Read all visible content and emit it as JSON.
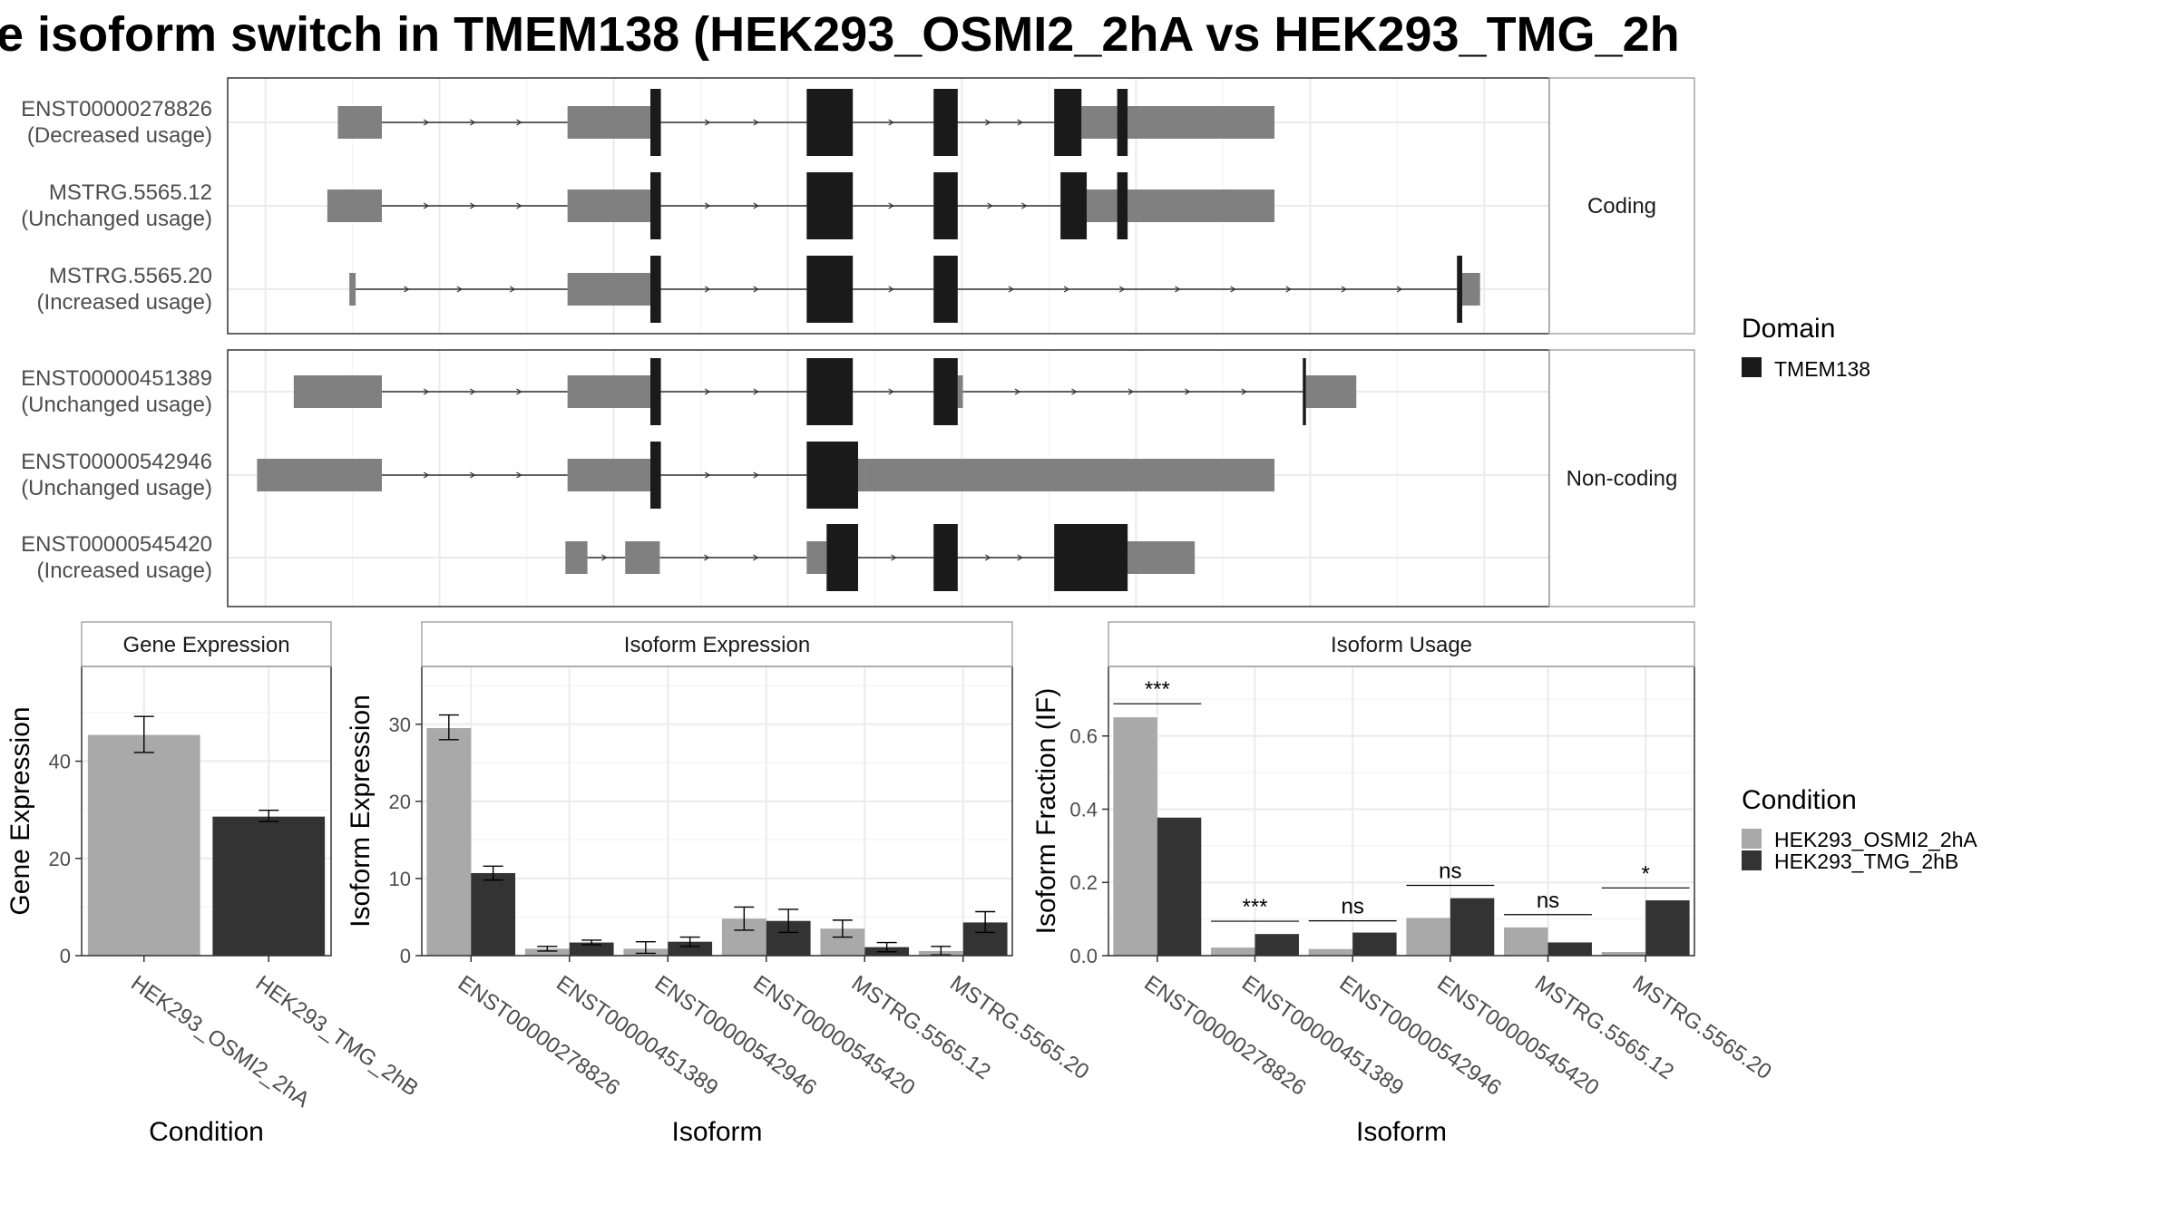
{
  "title": "e isoform switch in TMEM138 (HEK293_OSMI2_2hA vs HEK293_TMG_2h",
  "colors": {
    "domain": "#1a1a1a",
    "exon": "#808080",
    "line": "#333333",
    "panel_border": "#333333",
    "strip_border": "#a6a6a6",
    "grid_major": "#ebebeb",
    "grid_minor": "#f5f5f5",
    "cond_a": "#a9a9a9",
    "cond_b": "#333333"
  },
  "gene_structure": {
    "facets": [
      {
        "label": "Coding",
        "isoforms": [
          {
            "id": "ENST00000278826",
            "usage": "(Decreased usage)",
            "utr": [
              [
                0.5,
                4.7
              ],
              [
                22.4,
                30.3
              ],
              [
                71.4,
                74.8
              ],
              [
                75.8,
                89.8
              ]
            ],
            "cds": [
              [
                30.3,
                31.3
              ],
              [
                45.2,
                49.6
              ],
              [
                57.3,
                59.6
              ],
              [
                68.8,
                71.4
              ],
              [
                74.8,
                75.8
              ]
            ],
            "intron": [
              [
                4.7,
                22.4
              ],
              [
                31.3,
                45.2
              ],
              [
                49.6,
                57.3
              ],
              [
                59.6,
                68.8
              ]
            ]
          },
          {
            "id": "MSTRG.5565.12",
            "usage": "(Unchanged usage)",
            "utr": [
              [
                -0.5,
                4.7
              ],
              [
                22.4,
                30.3
              ],
              [
                71.9,
                74.8
              ],
              [
                75.8,
                89.8
              ]
            ],
            "cds": [
              [
                30.3,
                31.3
              ],
              [
                45.2,
                49.6
              ],
              [
                57.3,
                59.6
              ],
              [
                69.4,
                71.9
              ],
              [
                74.8,
                75.8
              ]
            ],
            "intron": [
              [
                4.7,
                22.4
              ],
              [
                31.3,
                45.2
              ],
              [
                49.6,
                57.3
              ],
              [
                59.6,
                69.4
              ]
            ]
          },
          {
            "id": "MSTRG.5565.20",
            "usage": "(Increased usage)",
            "utr": [
              [
                1.6,
                2.2
              ],
              [
                22.4,
                30.3
              ],
              [
                107.7,
                109.4
              ]
            ],
            "cds": [
              [
                30.3,
                31.3
              ],
              [
                45.2,
                49.6
              ],
              [
                57.3,
                59.6
              ],
              [
                107.2,
                107.7
              ]
            ],
            "intron": [
              [
                2.2,
                22.4
              ],
              [
                31.3,
                45.2
              ],
              [
                49.6,
                57.3
              ],
              [
                59.6,
                107.2
              ]
            ]
          }
        ]
      },
      {
        "label": "Non-coding",
        "isoforms": [
          {
            "id": "ENST00000451389",
            "usage": "(Unchanged usage)",
            "utr": [
              [
                -3.7,
                4.7
              ],
              [
                22.4,
                30.3
              ],
              [
                59.6,
                60.1
              ],
              [
                92.8,
                97.6
              ]
            ],
            "cds": [
              [
                30.3,
                31.3
              ],
              [
                45.2,
                49.6
              ],
              [
                57.3,
                59.6
              ],
              [
                92.5,
                92.8
              ]
            ],
            "intron": [
              [
                4.7,
                22.4
              ],
              [
                31.3,
                45.2
              ],
              [
                49.6,
                57.3
              ],
              [
                60.1,
                92.5
              ]
            ]
          },
          {
            "id": "ENST00000542946",
            "usage": "(Unchanged usage)",
            "utr": [
              [
                -7.2,
                4.7
              ],
              [
                22.4,
                30.3
              ],
              [
                50.1,
                50.8
              ],
              [
                50.8,
                89.8
              ]
            ],
            "cds": [
              [
                30.3,
                31.3
              ],
              [
                45.2,
                50.1
              ]
            ],
            "intron": [
              [
                4.7,
                22.4
              ],
              [
                31.3,
                45.2
              ]
            ]
          },
          {
            "id": "ENST00000545420",
            "usage": "(Increased usage)",
            "utr": [
              [
                22.2,
                24.3
              ],
              [
                27.9,
                31.2
              ],
              [
                45.2,
                47.1
              ],
              [
                75.8,
                82.2
              ]
            ],
            "cds": [
              [
                47.1,
                50.1
              ],
              [
                57.3,
                59.6
              ],
              [
                68.8,
                75.8
              ]
            ],
            "intron": [
              [
                24.3,
                27.9
              ],
              [
                31.2,
                45.2
              ],
              [
                50.1,
                57.3
              ],
              [
                59.6,
                68.8
              ]
            ]
          }
        ]
      }
    ]
  },
  "legends": {
    "domain_title": "Domain",
    "domain_items": [
      "TMEM138"
    ],
    "condition_title": "Condition",
    "condition_items": [
      "HEK293_OSMI2_2hA",
      "HEK293_TMG_2hB"
    ]
  },
  "chart_data": [
    {
      "type": "bar",
      "title": "Gene Expression",
      "xlabel": "Condition",
      "ylabel": "Gene Expression",
      "categories": [
        "HEK293_OSMI2_2hA",
        "HEK293_TMG_2hB"
      ],
      "values": [
        45.4,
        28.6
      ],
      "errors": [
        [
          41.8,
          49.2
        ],
        [
          27.6,
          29.9
        ]
      ],
      "yticks": [
        0,
        20,
        40
      ],
      "ylim": [
        0,
        59.5
      ],
      "grid": true
    },
    {
      "type": "bar",
      "title": "Isoform Expression",
      "xlabel": "Isoform",
      "ylabel": "Isoform Expression",
      "categories": [
        "ENST00000278826",
        "ENST00000451389",
        "ENST00000542946",
        "ENST00000545420",
        "MSTRG.5565.12",
        "MSTRG.5565.20"
      ],
      "series": [
        {
          "name": "HEK293_OSMI2_2hA",
          "values": [
            29.5,
            0.9,
            0.9,
            4.8,
            3.5,
            0.6
          ],
          "errors": [
            [
              28.0,
              31.2
            ],
            [
              0.6,
              1.2
            ],
            [
              0.3,
              1.8
            ],
            [
              3.3,
              6.3
            ],
            [
              2.4,
              4.6
            ],
            [
              0.1,
              1.2
            ]
          ]
        },
        {
          "name": "HEK293_TMG_2hB",
          "values": [
            10.7,
            1.7,
            1.8,
            4.5,
            1.1,
            4.3
          ],
          "errors": [
            [
              9.8,
              11.6
            ],
            [
              1.4,
              2.0
            ],
            [
              1.2,
              2.4
            ],
            [
              3.0,
              6.0
            ],
            [
              0.5,
              1.7
            ],
            [
              3.0,
              5.7
            ]
          ]
        }
      ],
      "yticks": [
        0,
        10,
        20,
        30
      ],
      "ylim": [
        0,
        37.5
      ],
      "grid": true
    },
    {
      "type": "bar",
      "title": "Isoform Usage",
      "xlabel": "Isoform",
      "ylabel": "Isoform Fraction (IF)",
      "categories": [
        "ENST00000278826",
        "ENST00000451389",
        "ENST00000542946",
        "ENST00000545420",
        "MSTRG.5565.12",
        "MSTRG.5565.20"
      ],
      "series": [
        {
          "name": "HEK293_OSMI2_2hA",
          "values": [
            0.651,
            0.022,
            0.018,
            0.103,
            0.077,
            0.01
          ]
        },
        {
          "name": "HEK293_TMG_2hB",
          "values": [
            0.377,
            0.059,
            0.063,
            0.157,
            0.036,
            0.151
          ]
        }
      ],
      "significance": [
        "***",
        "***",
        "ns",
        "ns",
        "ns",
        "*"
      ],
      "sig_line": [
        0.688,
        0.094,
        0.095,
        0.192,
        0.112,
        0.185
      ],
      "yticks": [
        "0.0",
        "0.2",
        "0.4",
        "0.6"
      ],
      "ylim": [
        0,
        0.79
      ],
      "grid": true
    }
  ]
}
